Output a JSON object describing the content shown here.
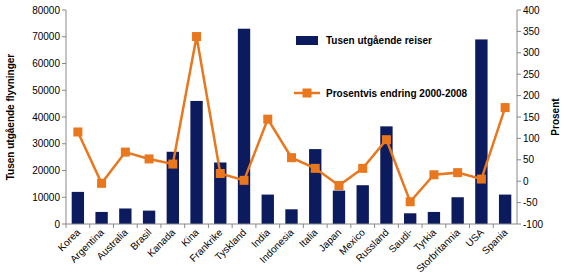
{
  "chart_data": {
    "type": "bar",
    "y_label": "Tusen utgående flyvninger",
    "y2_label": "Prosent",
    "categories": [
      "Korea",
      "Argentina",
      "Australia",
      "Brasil",
      "Kanada",
      "Kina",
      "Frankrike",
      "Tyskland",
      "India",
      "Indonesia",
      "Italia",
      "Japan",
      "Mexico",
      "Russland",
      "Saudi-",
      "Tyrkia",
      "Storbritannia",
      "USA",
      "Spania"
    ],
    "series": [
      {
        "name": "Tusen utgående reiser",
        "type": "bar",
        "color": "#0c1a5e",
        "values": [
          12000,
          4500,
          5800,
          5000,
          27000,
          46000,
          23000,
          73000,
          11000,
          5500,
          28000,
          12500,
          14500,
          36500,
          4000,
          4500,
          10000,
          69000,
          11000
        ]
      },
      {
        "name": "Prosentvis endring 2000-2008",
        "type": "line",
        "axis": "y2",
        "color": "#e8771e",
        "marker": "square",
        "line_style": "solid",
        "values": [
          115,
          -5,
          68,
          52,
          40,
          338,
          18,
          2,
          145,
          55,
          30,
          -10,
          30,
          97,
          -48,
          15,
          20,
          5,
          172
        ]
      }
    ],
    "ylim": [
      0,
      80000
    ],
    "yticks": [
      0,
      10000,
      20000,
      30000,
      40000,
      50000,
      60000,
      70000,
      80000
    ],
    "y2lim": [
      -100,
      400
    ],
    "y2ticks": [
      -100,
      -50,
      0,
      50,
      100,
      150,
      200,
      250,
      300,
      350,
      400
    ],
    "grid": false,
    "legend": "top"
  }
}
